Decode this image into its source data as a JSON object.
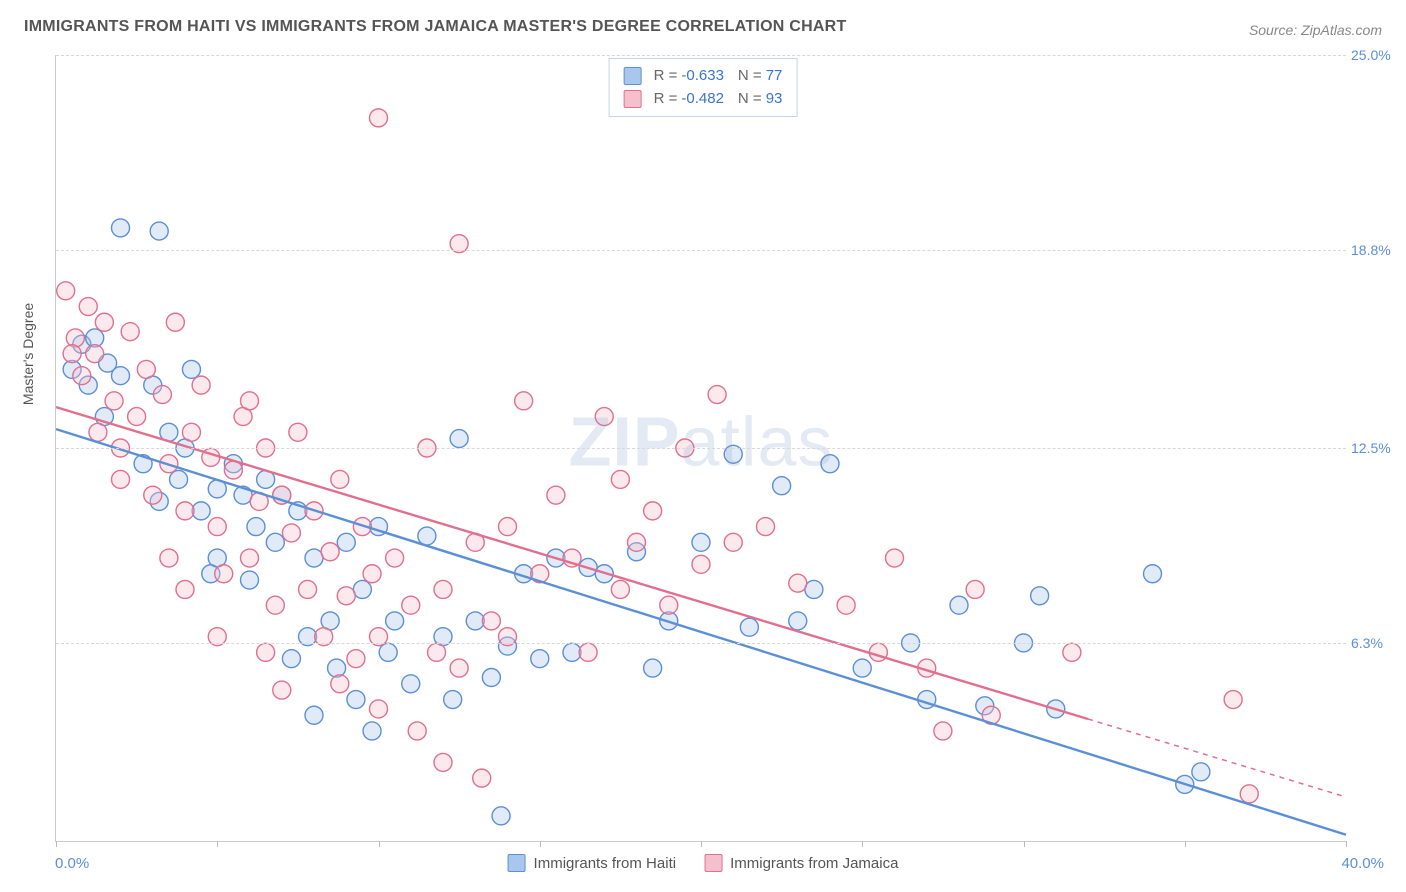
{
  "title": "IMMIGRANTS FROM HAITI VS IMMIGRANTS FROM JAMAICA MASTER'S DEGREE CORRELATION CHART",
  "source": "Source: ZipAtlas.com",
  "ylabel": "Master's Degree",
  "watermark": {
    "bold": "ZIP",
    "rest": "atlas"
  },
  "chart": {
    "type": "scatter",
    "background_color": "#ffffff",
    "grid_color": "#d8d8d8",
    "axis_color": "#cccccc",
    "xlim": [
      0,
      40
    ],
    "ylim": [
      0,
      25
    ],
    "xtick_positions": [
      0,
      5,
      10,
      15,
      20,
      25,
      30,
      35,
      40
    ],
    "xrange_labels": {
      "left": "0.0%",
      "right": "40.0%"
    },
    "ytick_labels": [
      {
        "value": 25.0,
        "label": "25.0%"
      },
      {
        "value": 18.8,
        "label": "18.8%"
      },
      {
        "value": 12.5,
        "label": "12.5%"
      },
      {
        "value": 6.3,
        "label": "6.3%"
      }
    ],
    "label_color": "#5b8fd6",
    "label_fontsize": 14,
    "marker_radius": 9,
    "marker_fill_opacity": 0.35,
    "marker_stroke_width": 1.4,
    "line_width": 2.4,
    "series": [
      {
        "key": "haiti",
        "name": "Immigrants from Haiti",
        "color_fill": "#a9c7ec",
        "color_stroke": "#5b8fd6",
        "R": "-0.633",
        "N": "77",
        "regression": {
          "x1": 0,
          "y1": 13.1,
          "x2": 40,
          "y2": 0.2,
          "dashed_from_x": null
        },
        "points": [
          [
            0.5,
            15.0
          ],
          [
            0.8,
            15.8
          ],
          [
            1.0,
            14.5
          ],
          [
            1.2,
            16.0
          ],
          [
            1.5,
            13.5
          ],
          [
            1.6,
            15.2
          ],
          [
            2.0,
            14.8
          ],
          [
            2.0,
            19.5
          ],
          [
            3.2,
            19.4
          ],
          [
            2.7,
            12.0
          ],
          [
            3.0,
            14.5
          ],
          [
            3.2,
            10.8
          ],
          [
            3.5,
            13.0
          ],
          [
            3.8,
            11.5
          ],
          [
            4.0,
            12.5
          ],
          [
            4.2,
            15.0
          ],
          [
            4.5,
            10.5
          ],
          [
            4.8,
            8.5
          ],
          [
            5.0,
            11.2
          ],
          [
            5.0,
            9.0
          ],
          [
            5.5,
            12.0
          ],
          [
            5.8,
            11.0
          ],
          [
            6.0,
            8.3
          ],
          [
            6.2,
            10.0
          ],
          [
            6.5,
            11.5
          ],
          [
            6.8,
            9.5
          ],
          [
            7.0,
            11.0
          ],
          [
            7.3,
            5.8
          ],
          [
            7.5,
            10.5
          ],
          [
            7.8,
            6.5
          ],
          [
            8.0,
            9.0
          ],
          [
            8.0,
            4.0
          ],
          [
            8.5,
            7.0
          ],
          [
            8.7,
            5.5
          ],
          [
            9.0,
            9.5
          ],
          [
            9.3,
            4.5
          ],
          [
            9.5,
            8.0
          ],
          [
            9.8,
            3.5
          ],
          [
            10.0,
            10.0
          ],
          [
            10.3,
            6.0
          ],
          [
            10.5,
            7.0
          ],
          [
            11.0,
            5.0
          ],
          [
            11.5,
            9.7
          ],
          [
            12.0,
            6.5
          ],
          [
            12.3,
            4.5
          ],
          [
            12.5,
            12.8
          ],
          [
            13.0,
            7.0
          ],
          [
            13.5,
            5.2
          ],
          [
            13.8,
            0.8
          ],
          [
            14.0,
            6.2
          ],
          [
            14.5,
            8.5
          ],
          [
            15.0,
            5.8
          ],
          [
            15.5,
            9.0
          ],
          [
            16.0,
            6.0
          ],
          [
            16.5,
            8.7
          ],
          [
            17.0,
            8.5
          ],
          [
            18.0,
            9.2
          ],
          [
            18.5,
            5.5
          ],
          [
            19.0,
            7.0
          ],
          [
            20.0,
            9.5
          ],
          [
            21.0,
            12.3
          ],
          [
            21.5,
            6.8
          ],
          [
            22.5,
            11.3
          ],
          [
            23.0,
            7.0
          ],
          [
            23.5,
            8.0
          ],
          [
            24.0,
            12.0
          ],
          [
            25.0,
            5.5
          ],
          [
            26.5,
            6.3
          ],
          [
            27.0,
            4.5
          ],
          [
            28.0,
            7.5
          ],
          [
            28.8,
            4.3
          ],
          [
            30.0,
            6.3
          ],
          [
            30.5,
            7.8
          ],
          [
            31.0,
            4.2
          ],
          [
            34.0,
            8.5
          ],
          [
            35.0,
            1.8
          ],
          [
            35.5,
            2.2
          ]
        ]
      },
      {
        "key": "jamaica",
        "name": "Immigrants from Jamaica",
        "color_fill": "#f4c0cd",
        "color_stroke": "#e16f8e",
        "R": "-0.482",
        "N": "93",
        "regression": {
          "x1": 0,
          "y1": 13.8,
          "x2": 40,
          "y2": 1.4,
          "dashed_from_x": 32
        },
        "points": [
          [
            0.3,
            17.5
          ],
          [
            0.6,
            16.0
          ],
          [
            0.8,
            14.8
          ],
          [
            1.0,
            17.0
          ],
          [
            1.2,
            15.5
          ],
          [
            1.5,
            16.5
          ],
          [
            1.8,
            14.0
          ],
          [
            2.0,
            12.5
          ],
          [
            2.3,
            16.2
          ],
          [
            2.5,
            13.5
          ],
          [
            2.8,
            15.0
          ],
          [
            3.0,
            11.0
          ],
          [
            3.3,
            14.2
          ],
          [
            3.5,
            12.0
          ],
          [
            3.7,
            16.5
          ],
          [
            4.0,
            10.5
          ],
          [
            4.2,
            13.0
          ],
          [
            4.5,
            14.5
          ],
          [
            4.8,
            12.2
          ],
          [
            5.0,
            10.0
          ],
          [
            5.2,
            8.5
          ],
          [
            5.5,
            11.8
          ],
          [
            5.8,
            13.5
          ],
          [
            6.0,
            9.0
          ],
          [
            6.3,
            10.8
          ],
          [
            6.5,
            12.5
          ],
          [
            6.8,
            7.5
          ],
          [
            7.0,
            11.0
          ],
          [
            7.3,
            9.8
          ],
          [
            7.5,
            13.0
          ],
          [
            7.8,
            8.0
          ],
          [
            8.0,
            10.5
          ],
          [
            8.3,
            6.5
          ],
          [
            8.5,
            9.2
          ],
          [
            8.8,
            11.5
          ],
          [
            9.0,
            7.8
          ],
          [
            9.3,
            5.8
          ],
          [
            9.5,
            10.0
          ],
          [
            9.8,
            8.5
          ],
          [
            10.0,
            6.5
          ],
          [
            10.5,
            9.0
          ],
          [
            10.0,
            23.0
          ],
          [
            11.0,
            7.5
          ],
          [
            11.5,
            12.5
          ],
          [
            12.0,
            8.0
          ],
          [
            12.5,
            19.0
          ],
          [
            12.5,
            5.5
          ],
          [
            13.0,
            9.5
          ],
          [
            13.5,
            7.0
          ],
          [
            14.0,
            10.0
          ],
          [
            14.5,
            14.0
          ],
          [
            15.0,
            8.5
          ],
          [
            16.0,
            9.0
          ],
          [
            16.5,
            6.0
          ],
          [
            17.0,
            13.5
          ],
          [
            17.5,
            8.0
          ],
          [
            18.0,
            9.5
          ],
          [
            18.5,
            10.5
          ],
          [
            19.0,
            7.5
          ],
          [
            20.5,
            14.2
          ],
          [
            20.0,
            8.8
          ],
          [
            21.0,
            9.5
          ],
          [
            22.0,
            10.0
          ],
          [
            23.0,
            8.2
          ],
          [
            11.2,
            3.5
          ],
          [
            12.0,
            2.5
          ],
          [
            13.2,
            2.0
          ],
          [
            6.5,
            6.0
          ],
          [
            24.5,
            7.5
          ],
          [
            25.5,
            6.0
          ],
          [
            26.0,
            9.0
          ],
          [
            27.0,
            5.5
          ],
          [
            27.5,
            3.5
          ],
          [
            28.5,
            8.0
          ],
          [
            29.0,
            4.0
          ],
          [
            31.5,
            6.0
          ],
          [
            36.5,
            4.5
          ],
          [
            37.0,
            1.5
          ],
          [
            4.0,
            8.0
          ],
          [
            14.0,
            6.5
          ],
          [
            5.0,
            6.5
          ],
          [
            7.0,
            4.8
          ],
          [
            8.8,
            5.0
          ],
          [
            10.0,
            4.2
          ],
          [
            11.8,
            6.0
          ],
          [
            3.5,
            9.0
          ],
          [
            2.0,
            11.5
          ],
          [
            1.3,
            13.0
          ],
          [
            0.5,
            15.5
          ],
          [
            17.5,
            11.5
          ],
          [
            19.5,
            12.5
          ],
          [
            15.5,
            11.0
          ],
          [
            6.0,
            14.0
          ]
        ]
      }
    ]
  },
  "bottom_legend": [
    {
      "label": "Immigrants from Haiti",
      "fill": "#a9c7ec",
      "stroke": "#5b8fd6"
    },
    {
      "label": "Immigrants from Jamaica",
      "fill": "#f4c0cd",
      "stroke": "#e16f8e"
    }
  ]
}
